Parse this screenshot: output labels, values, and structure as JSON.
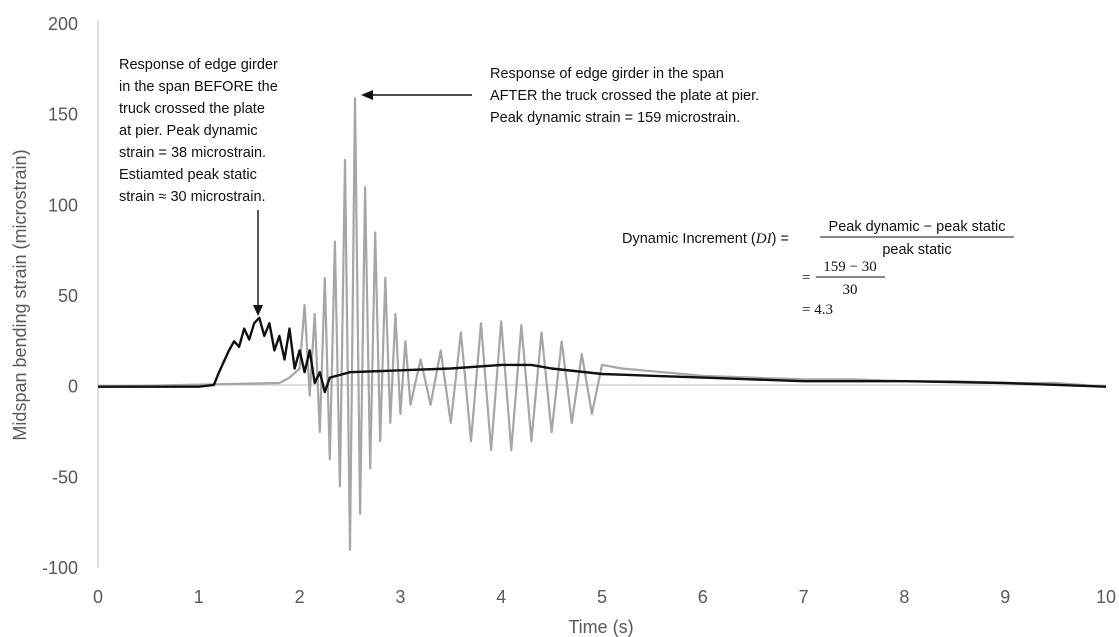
{
  "chart_data": {
    "type": "line",
    "xlabel": "Time (s)",
    "ylabel": "Midspan bending strain (microstrain)",
    "xlim": [
      0,
      10
    ],
    "ylim": [
      -100,
      200
    ],
    "x_ticks": [
      "0",
      "1",
      "2",
      "3",
      "4",
      "5",
      "6",
      "7",
      "8",
      "9",
      "10"
    ],
    "y_ticks": [
      "200",
      "150",
      "100",
      "50",
      "0",
      "-50",
      "-100"
    ],
    "grid": false,
    "series": [
      {
        "name": "Response of edge girder in the span AFTER the truck crossed the plate at pier",
        "color": "#a6a6a6",
        "x": [
          0,
          1.8,
          1.9,
          2.0,
          2.05,
          2.1,
          2.15,
          2.2,
          2.25,
          2.3,
          2.35,
          2.4,
          2.45,
          2.5,
          2.55,
          2.6,
          2.65,
          2.7,
          2.75,
          2.8,
          2.85,
          2.9,
          2.95,
          3.0,
          3.05,
          3.1,
          3.2,
          3.3,
          3.4,
          3.5,
          3.6,
          3.7,
          3.8,
          3.9,
          4.0,
          4.1,
          4.2,
          4.3,
          4.4,
          4.5,
          4.6,
          4.7,
          4.8,
          4.9,
          5.0,
          5.2,
          5.4,
          5.6,
          5.8,
          6.0,
          6.5,
          7.0,
          7.5,
          8.0,
          8.5,
          9.0,
          9.5,
          10.0
        ],
        "y": [
          0,
          2,
          5,
          10,
          45,
          -5,
          40,
          -25,
          60,
          -40,
          80,
          -55,
          125,
          -90,
          159,
          -70,
          110,
          -45,
          85,
          -30,
          60,
          -20,
          40,
          -15,
          25,
          -10,
          15,
          -10,
          20,
          -20,
          30,
          -30,
          35,
          -35,
          36,
          -35,
          34,
          -30,
          30,
          -25,
          25,
          -20,
          18,
          -15,
          12,
          10,
          9,
          8,
          7,
          6,
          5,
          4,
          4,
          3,
          3,
          2,
          2,
          0
        ],
        "peak": 159
      },
      {
        "name": "Response of edge girder in the span BEFORE the truck crossed the plate at pier",
        "color": "#111111",
        "x": [
          0,
          1.0,
          1.15,
          1.2,
          1.3,
          1.35,
          1.4,
          1.45,
          1.5,
          1.55,
          1.6,
          1.65,
          1.7,
          1.75,
          1.8,
          1.85,
          1.9,
          1.95,
          2.0,
          2.05,
          2.1,
          2.15,
          2.2,
          2.25,
          2.3,
          2.5,
          3.0,
          3.5,
          4.0,
          4.3,
          4.5,
          5.0,
          5.5,
          6.0,
          6.5,
          7.0,
          8.0,
          9.0,
          10.0
        ],
        "y": [
          0,
          0,
          1,
          8,
          20,
          25,
          22,
          32,
          26,
          35,
          38,
          28,
          35,
          20,
          28,
          15,
          32,
          10,
          20,
          8,
          20,
          2,
          8,
          -3,
          5,
          8,
          9,
          10,
          12,
          12,
          10,
          7,
          6,
          5,
          4,
          3,
          3,
          2,
          0
        ],
        "peak": 38
      }
    ],
    "annotations": {
      "before_lines": [
        "Response of edge girder",
        "in the span BEFORE the",
        "truck crossed the plate",
        "at pier.  Peak dynamic",
        "strain = 38 microstrain.",
        "Estiamted peak static",
        "strain ≈ 30 microstrain."
      ],
      "after_lines": [
        "Response of edge girder in the span",
        "AFTER the truck crossed the plate at pier.",
        "Peak dynamic strain = 159 microstrain."
      ],
      "formula": {
        "lhs": "Dynamic Increment (",
        "lhs_var": "DI",
        "lhs_close": ") =",
        "numerator": "Peak dynamic − peak static",
        "denominator": "peak static",
        "step2_eq": "=",
        "step2_num": "159 − 30",
        "step2_den": "30",
        "step3": "= 4.3"
      }
    }
  }
}
